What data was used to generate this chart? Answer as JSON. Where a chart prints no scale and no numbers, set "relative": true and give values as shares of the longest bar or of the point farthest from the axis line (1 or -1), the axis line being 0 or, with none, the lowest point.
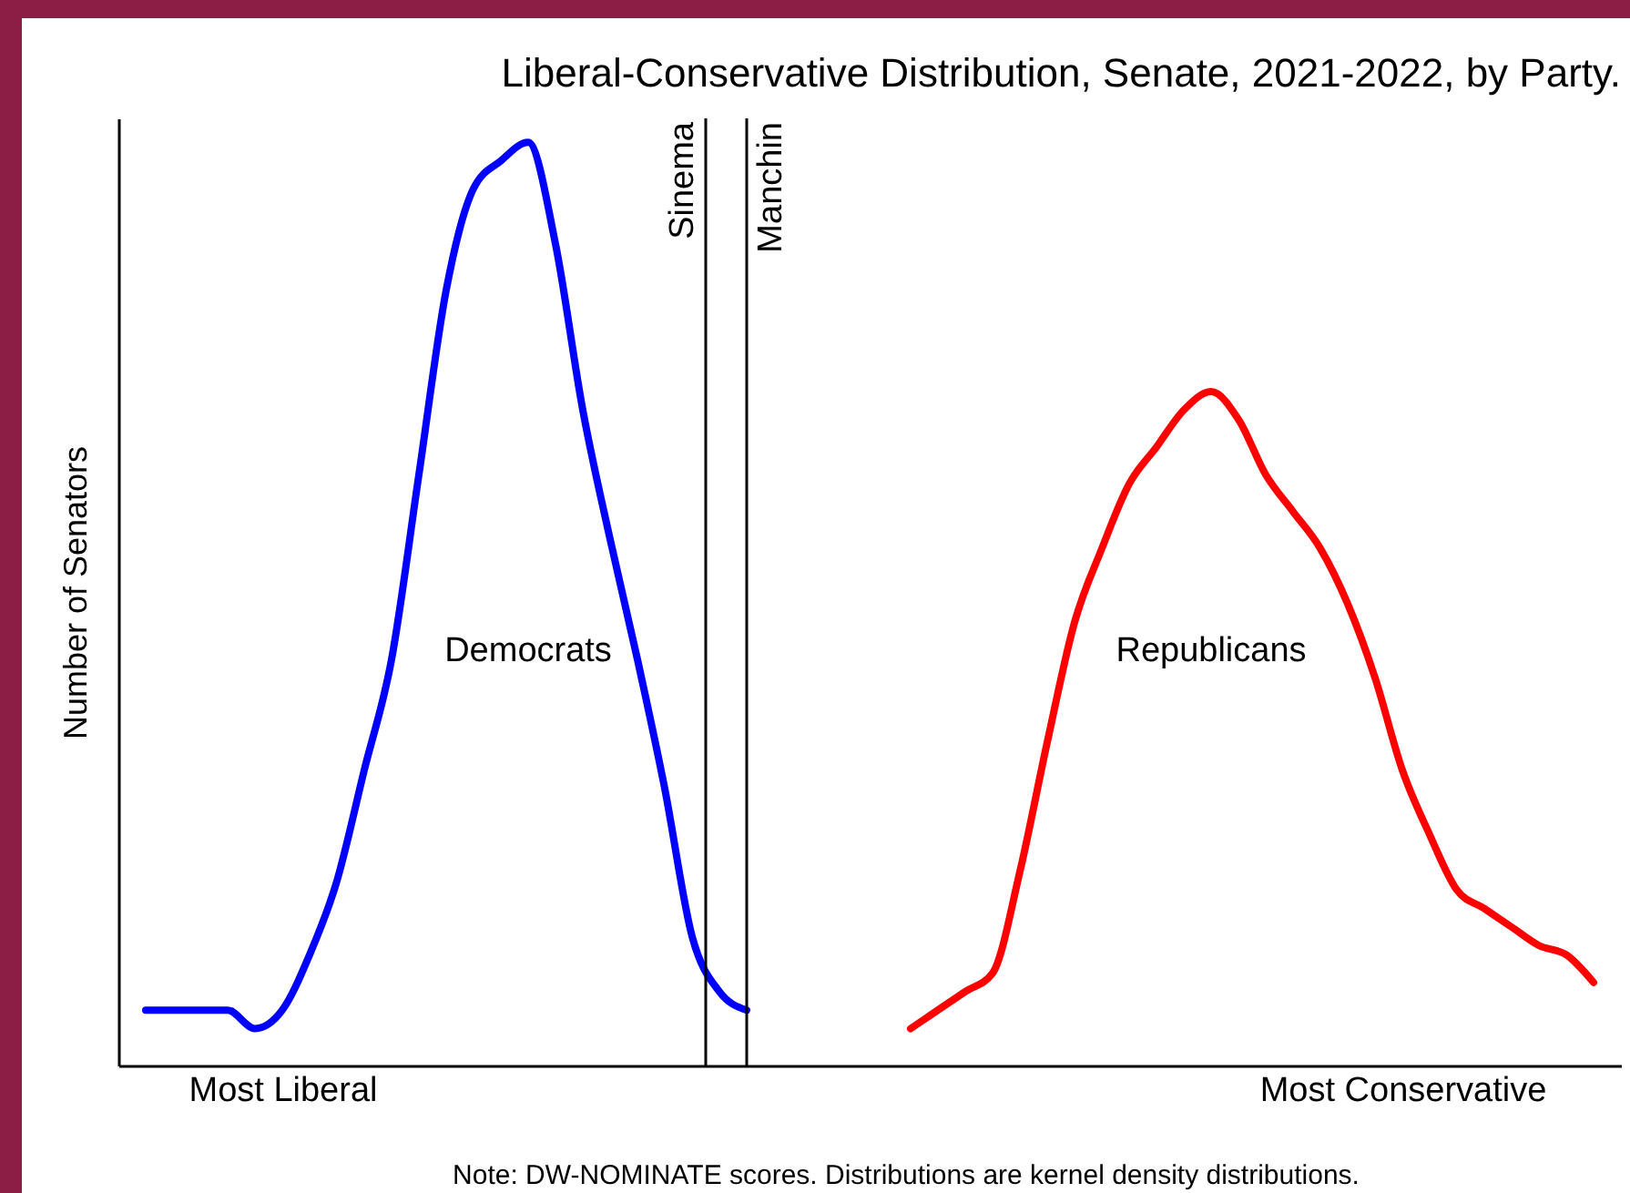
{
  "chart_data": {
    "type": "line",
    "title": "Liberal-Conservative Distribution, Senate, 2021-2022, by Party.",
    "ylabel": "Number of Senators",
    "relative": true,
    "marker": "none",
    "line_style": "solid",
    "categories": [
      null,
      null,
      null,
      null,
      null,
      null,
      "Most Liberal",
      null,
      null,
      null,
      null,
      null,
      null,
      null,
      null,
      null,
      null,
      null,
      null,
      null,
      null,
      null,
      null,
      null,
      null,
      null,
      null,
      null,
      null,
      null,
      null,
      null,
      null,
      null,
      null,
      null,
      null,
      null,
      null,
      null,
      null,
      null,
      null,
      null,
      null,
      null,
      null,
      "Most Conservative",
      null,
      null,
      null,
      null,
      null,
      null,
      null,
      null
    ],
    "series": [
      {
        "name": "Democrats",
        "color": "#0000ff",
        "values": [
          null,
          0.06,
          0.06,
          0.06,
          0.06,
          0.04,
          0.06,
          0.12,
          0.2,
          0.32,
          0.44,
          0.64,
          0.84,
          0.95,
          0.98,
          1,
          0.89,
          0.71,
          0.57,
          0.44,
          0.3,
          0.14,
          0.08,
          0.06,
          null,
          null,
          null,
          null,
          null,
          null,
          null,
          null,
          null,
          null,
          null,
          null,
          null,
          null,
          null,
          null,
          null,
          null,
          null,
          null,
          null,
          null,
          null,
          null,
          null,
          null,
          null,
          null,
          null,
          null,
          null,
          null
        ]
      },
      {
        "name": "Republicans",
        "color": "#ff0000",
        "values": [
          null,
          null,
          null,
          null,
          null,
          null,
          null,
          null,
          null,
          null,
          null,
          null,
          null,
          null,
          null,
          null,
          null,
          null,
          null,
          null,
          null,
          null,
          null,
          null,
          null,
          null,
          null,
          null,
          null,
          0.04,
          0.06,
          0.08,
          0.1,
          0.21,
          0.35,
          0.48,
          0.56,
          0.63,
          0.67,
          0.71,
          0.73,
          0.7,
          0.64,
          0.6,
          0.56,
          0.5,
          0.42,
          0.32,
          0.25,
          0.19,
          0.17,
          0.15,
          0.13,
          0.12,
          0.09,
          null
        ]
      }
    ],
    "annotations": [
      "Sinema",
      "Manchin",
      "Note: DW-NOMINATE scores. Distributions are kernel density distributions."
    ]
  }
}
